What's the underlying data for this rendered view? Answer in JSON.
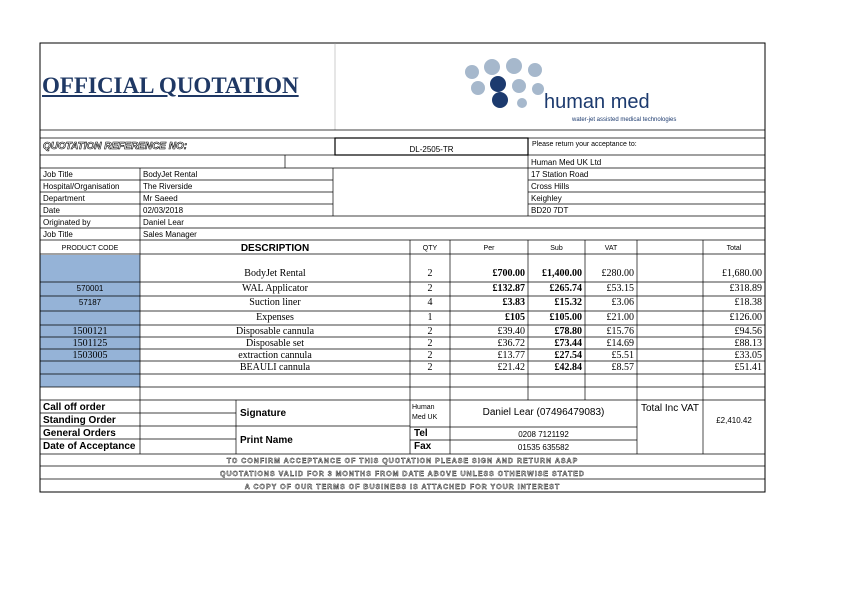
{
  "header": {
    "title": "OFFICIAL QUOTATION",
    "logo_text": "human med",
    "tagline": "water-jet assisted medical technologies"
  },
  "reference": {
    "label": "QUOTATION REFERENCE NO:",
    "value": "DL-2505-TR",
    "return_label": "Please return your acceptance to:"
  },
  "customer": [
    {
      "label": "Job Title",
      "value": "BodyJet Rental"
    },
    {
      "label": "Hospital/Organisation",
      "value": "The Riverside"
    },
    {
      "label": "Department",
      "value": "Mr Saeed"
    },
    {
      "label": "Date",
      "value": "02/03/2018"
    },
    {
      "label": "Originated by",
      "value": "Daniel Lear"
    },
    {
      "label": "Job Title",
      "value": "Sales Manager"
    }
  ],
  "address": [
    "Human Med UK Ltd",
    "17 Station Road",
    "Cross Hills",
    "Keighley",
    "BD20 7DT"
  ],
  "table": {
    "headers": [
      "PRODUCT CODE",
      "DESCRIPTION",
      "QTY",
      "Per",
      "Sub",
      "VAT",
      "Total"
    ],
    "rows": [
      [
        "",
        "BodyJet Rental",
        "2",
        "£700.00",
        "£1,400.00",
        "£280.00",
        "£1,680.00"
      ],
      [
        "570001",
        "WAL Applicator",
        "2",
        "£132.87",
        "£265.74",
        "£53.15",
        "£318.89"
      ],
      [
        "57187",
        "Suction liner",
        "4",
        "£3.83",
        "£15.32",
        "£3.06",
        "£18.38"
      ],
      [
        "",
        "Expenses",
        "1",
        "£105",
        "£105.00",
        "£21.00",
        "£126.00"
      ],
      [
        "1500121",
        "Disposable cannula",
        "2",
        "£39.40",
        "£78.80",
        "£15.76",
        "£94.56"
      ],
      [
        "1501125",
        "Disposable set",
        "2",
        "£36.72",
        "£73.44",
        "£14.69",
        "£88.13"
      ],
      [
        "1503005",
        "extraction cannula",
        "2",
        "£13.77",
        "£27.54",
        "£5.51",
        "£33.05"
      ],
      [
        "",
        "BEAULI cannula",
        "2",
        "£21.42",
        "£42.84",
        "£8.57",
        "£51.41"
      ]
    ]
  },
  "footer": {
    "orders": [
      "Call off order",
      "Standing Order",
      "General Orders",
      "Date of Acceptance"
    ],
    "signature_label": "Signature",
    "print_name_label": "Print Name",
    "company": "Human Med UK",
    "contact": "Daniel Lear (07496479083)",
    "tel_label": "Tel",
    "tel": "0208 7121192",
    "fax_label": "Fax",
    "fax": "01535 635582",
    "total_label": "Total Inc VAT",
    "total": "£2,410.42"
  },
  "notes": [
    "TO CONFIRM ACCEPTANCE OF THIS QUOTATION PLEASE SIGN AND RETURN ASAP",
    "QUOTATIONS VALID FOR 3 MONTHS FROM DATE ABOVE UNLESS OTHERWISE STATED",
    "A COPY OF OUR TERMS OF BUSINESS IS ATTACHED FOR YOUR INTEREST"
  ]
}
